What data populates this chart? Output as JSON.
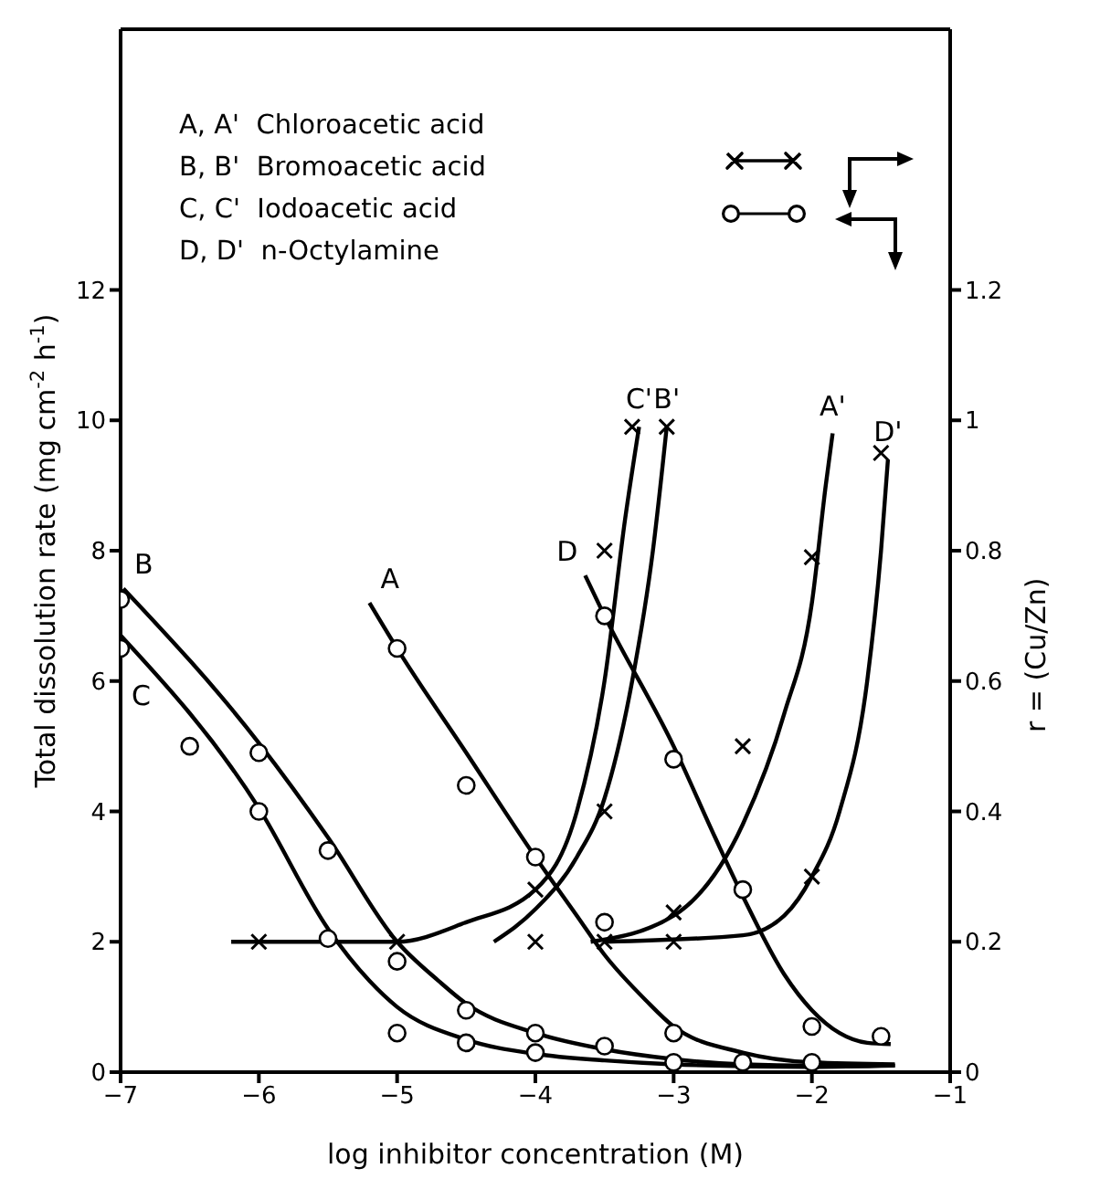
{
  "chart_data": {
    "type": "line",
    "xlabel": "log inhibitor concentration (M)",
    "ylabel": "Total dissolution rate (mg cm$^{-2}$ h$^{-1}$)",
    "y2label": "r = (Cu/Zn)",
    "xlim": [
      -7,
      -1
    ],
    "xticks": [
      -7,
      -6,
      -5,
      -4,
      -3,
      -2,
      -1
    ],
    "ylim": [
      0,
      16
    ],
    "yticks": [
      0,
      2,
      4,
      6,
      8,
      10,
      12
    ],
    "y2lim": [
      0,
      1.6
    ],
    "y2ticks": [
      0,
      0.2,
      0.4,
      0.6,
      0.8,
      1,
      1.2
    ],
    "grid": false,
    "annotations": [
      "A, A'  Chloroacetic acid",
      "B, B'  Bromoacetic acid",
      "C, C'  Iodoacetic acid",
      "D, D'  n-Octylamine"
    ],
    "series": [
      {
        "name": "A",
        "marker": "none",
        "color": "#000000",
        "x": [
          -5.2,
          -5,
          -4.5,
          -4,
          -3.7,
          -3.5,
          -3.2,
          -3,
          -2.5,
          -2,
          -1.4
        ],
        "values": [
          7.2,
          6.5,
          4.9,
          3.3,
          2.4,
          1.8,
          1.1,
          0.7,
          0.3,
          0.15,
          0.12
        ]
      },
      {
        "name": "B",
        "marker": "none",
        "color": "#000000",
        "x": [
          -6.98,
          -6,
          -5.5,
          -5,
          -4.7,
          -4.5,
          -4,
          -3.5,
          -3,
          -2.5,
          -2,
          -1.4
        ],
        "values": [
          7.42,
          5.05,
          3.6,
          2.0,
          1.4,
          1.05,
          0.6,
          0.35,
          0.2,
          0.12,
          0.1,
          0.1
        ]
      },
      {
        "name": "C",
        "marker": "none",
        "color": "#000000",
        "x": [
          -7,
          -6,
          -5.5,
          -5.2,
          -5,
          -4.5,
          -4,
          -3.5,
          -3,
          -2,
          -1.4
        ],
        "values": [
          6.7,
          4.05,
          2.2,
          1.4,
          1.0,
          0.5,
          0.28,
          0.18,
          0.12,
          0.08,
          0.1
        ]
      },
      {
        "name": "D",
        "marker": "none",
        "color": "#000000",
        "x": [
          -3.64,
          -3.5,
          -3,
          -2.7,
          -2.5,
          -2.2,
          -2,
          -1.8,
          -1.6,
          -1.43
        ],
        "values": [
          7.62,
          7.0,
          5.0,
          3.6,
          2.7,
          1.5,
          0.95,
          0.6,
          0.45,
          0.43
        ]
      },
      {
        "type": "scatter",
        "marker": "circle",
        "color": "#000000",
        "x": [
          -5,
          -4.5,
          -4,
          -3.5,
          -3,
          -2
        ],
        "values": [
          6.5,
          4.4,
          3.3,
          2.3,
          0.6,
          0.15
        ]
      },
      {
        "type": "scatter",
        "marker": "circle",
        "color": "#000000",
        "x": [
          -7,
          -6,
          -5.5,
          -5,
          -4.5,
          -4,
          -3.5,
          -3,
          -2.5
        ],
        "values": [
          7.25,
          4.9,
          3.4,
          1.7,
          0.95,
          0.6,
          0.4,
          0.15,
          0.15
        ]
      },
      {
        "type": "scatter",
        "marker": "circle",
        "color": "#000000",
        "x": [
          -7,
          -6.5,
          -6,
          -5.5,
          -5,
          -4.5,
          -4
        ],
        "values": [
          6.5,
          5.0,
          4.0,
          2.05,
          0.6,
          0.45,
          0.3
        ]
      },
      {
        "type": "scatter",
        "marker": "circle",
        "color": "#000000",
        "x": [
          -3.5,
          -3,
          -2.5,
          -2,
          -1.5
        ],
        "values": [
          7.0,
          4.8,
          2.8,
          0.7,
          0.55
        ]
      },
      {
        "name": "A'",
        "axis": "y2",
        "marker": "none",
        "color": "#000000",
        "x": [
          -3.6,
          -3,
          -2.5,
          -2.2,
          -2,
          -1.9,
          -1.85
        ],
        "values": [
          0.2,
          0.24,
          0.38,
          0.55,
          0.72,
          0.9,
          0.98
        ]
      },
      {
        "name": "B'",
        "axis": "y2",
        "marker": "none",
        "color": "#000000",
        "x": [
          -4.3,
          -4,
          -3.7,
          -3.5,
          -3.3,
          -3.15,
          -3.05
        ],
        "values": [
          0.2,
          0.25,
          0.33,
          0.42,
          0.6,
          0.8,
          0.99
        ]
      },
      {
        "name": "C'",
        "axis": "y2",
        "marker": "none",
        "color": "#000000",
        "x": [
          -6.2,
          -5,
          -4.5,
          -4,
          -3.7,
          -3.5,
          -3.35,
          -3.25
        ],
        "values": [
          0.2,
          0.2,
          0.23,
          0.28,
          0.4,
          0.6,
          0.85,
          0.99
        ]
      },
      {
        "name": "D'",
        "axis": "y2",
        "marker": "none",
        "color": "#000000",
        "x": [
          -3.5,
          -2.5,
          -2.2,
          -2,
          -1.8,
          -1.6,
          -1.5,
          -1.45
        ],
        "values": [
          0.2,
          0.21,
          0.24,
          0.3,
          0.4,
          0.6,
          0.8,
          0.94
        ]
      },
      {
        "type": "scatter",
        "axis": "y2",
        "marker": "cross",
        "color": "#000000",
        "x": [
          -3.5,
          -3,
          -2.5,
          -2
        ],
        "values": [
          0.2,
          0.245,
          0.5,
          0.79
        ]
      },
      {
        "type": "scatter",
        "axis": "y2",
        "marker": "cross",
        "color": "#000000",
        "x": [
          -4,
          -3.5,
          -3.05
        ],
        "values": [
          0.2,
          0.4,
          0.99
        ]
      },
      {
        "type": "scatter",
        "axis": "y2",
        "marker": "cross",
        "color": "#000000",
        "x": [
          -6,
          -5,
          -4,
          -3.5,
          -3.3
        ],
        "values": [
          0.2,
          0.2,
          0.28,
          0.8,
          0.99
        ]
      },
      {
        "type": "scatter",
        "axis": "y2",
        "marker": "cross",
        "color": "#000000",
        "x": [
          -3,
          -2,
          -1.5
        ],
        "values": [
          0.2,
          0.3,
          0.95
        ]
      }
    ]
  }
}
